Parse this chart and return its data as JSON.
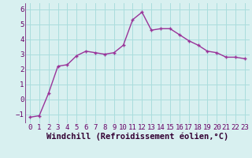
{
  "x": [
    0,
    1,
    2,
    3,
    4,
    5,
    6,
    7,
    8,
    9,
    10,
    11,
    12,
    13,
    14,
    15,
    16,
    17,
    18,
    19,
    20,
    21,
    22,
    23
  ],
  "y": [
    -1.2,
    -1.1,
    0.4,
    2.2,
    2.3,
    2.9,
    3.2,
    3.1,
    3.0,
    3.1,
    3.6,
    5.3,
    5.8,
    4.6,
    4.7,
    4.7,
    4.3,
    3.9,
    3.6,
    3.2,
    3.1,
    2.8,
    2.8,
    2.7
  ],
  "line_color": "#993399",
  "marker": "+",
  "marker_size": 3,
  "marker_linewidth": 1.0,
  "bg_color": "#d8f0f0",
  "grid_color": "#aadddd",
  "xlabel": "Windchill (Refroidissement éolien,°C)",
  "xlim": [
    -0.5,
    23.5
  ],
  "ylim": [
    -1.6,
    6.4
  ],
  "yticks": [
    -1,
    0,
    1,
    2,
    3,
    4,
    5,
    6
  ],
  "xticks": [
    0,
    1,
    2,
    3,
    4,
    5,
    6,
    7,
    8,
    9,
    10,
    11,
    12,
    13,
    14,
    15,
    16,
    17,
    18,
    19,
    20,
    21,
    22,
    23
  ],
  "tick_color": "#660066",
  "xlabel_color": "#330033",
  "tick_fontsize": 6.5,
  "xlabel_fontsize": 7.5,
  "line_width": 1.0
}
